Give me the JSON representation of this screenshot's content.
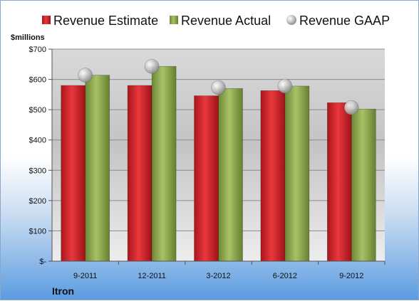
{
  "chart_data": {
    "type": "bar",
    "title": "",
    "ylabel": "$millions",
    "company": "Itron",
    "categories": [
      "9-2011",
      "12-2011",
      "3-2012",
      "6-2012",
      "9-2012"
    ],
    "ylim": [
      0,
      700
    ],
    "yticks": [
      0,
      100,
      200,
      300,
      400,
      500,
      600,
      700
    ],
    "ytick_labels": [
      "$-",
      "$100",
      "$200",
      "$300",
      "$400",
      "$500",
      "$600",
      "$700"
    ],
    "grid": true,
    "legend_position": "top",
    "series": [
      {
        "name": "Revenue Estimate",
        "kind": "bar",
        "color": "#d42a2f",
        "values": [
          580,
          580,
          546,
          563,
          523
        ]
      },
      {
        "name": "Revenue Actual",
        "kind": "bar",
        "color": "#8faa4e",
        "values": [
          614,
          643,
          570,
          578,
          502
        ]
      },
      {
        "name": "Revenue GAAP",
        "kind": "marker",
        "color": "#b8b8b8",
        "values": [
          614,
          643,
          573,
          578,
          507
        ]
      }
    ]
  }
}
